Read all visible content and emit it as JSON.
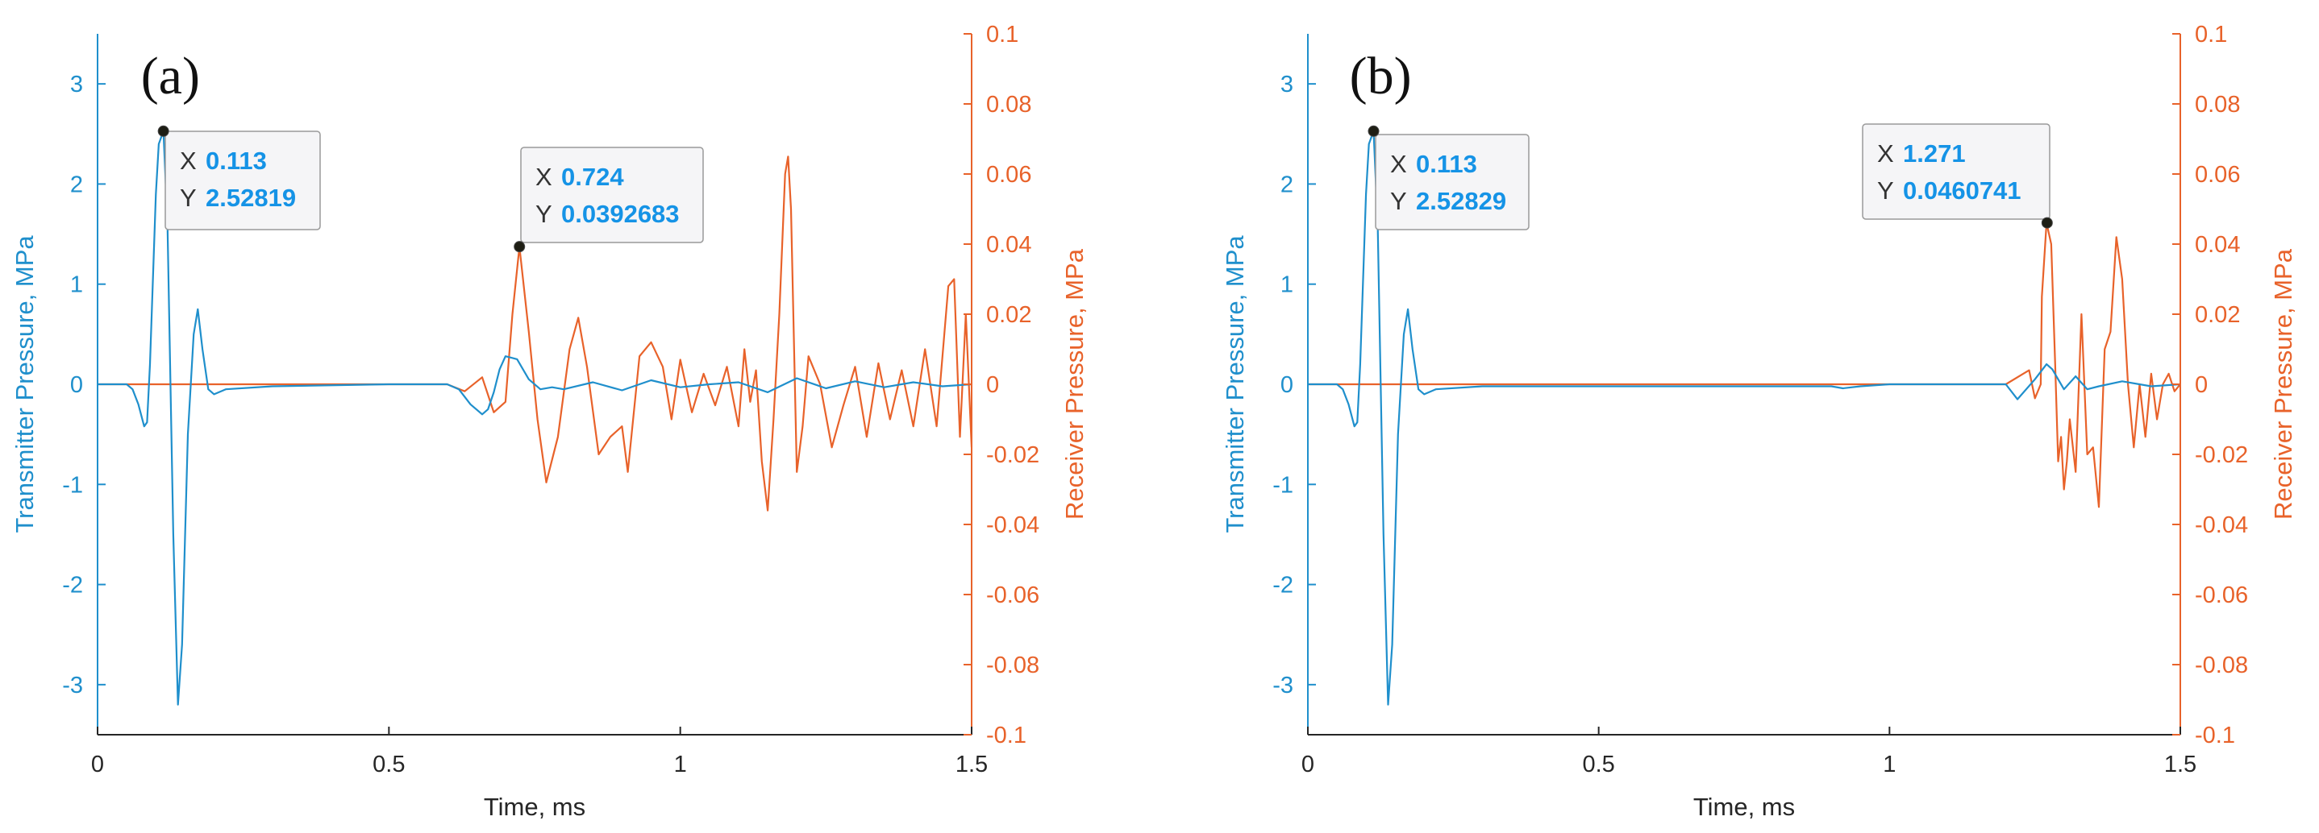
{
  "colors": {
    "transmitter": "#1F8FCC",
    "receiver": "#E8622A",
    "tip_value": "#1593E6",
    "axis_dark": "#262626"
  },
  "chart_data": [
    {
      "type": "line",
      "panel_label": "(a)",
      "xlabel": "Time, ms",
      "ylabel_left": "Transmitter Pressure, MPa",
      "ylabel_right": "Receiver Pressure, MPa",
      "xlim": [
        0,
        1.5
      ],
      "ylim_left": [
        -3.5,
        3.5
      ],
      "ylim_right": [
        -0.1,
        0.1
      ],
      "x_ticks": [
        "0",
        "0.5",
        "1",
        "1.5"
      ],
      "y_ticks_left": [
        "-3",
        "-2",
        "-1",
        "0",
        "1",
        "2",
        "3"
      ],
      "y_ticks_right": [
        "-0.1",
        "-0.08",
        "-0.06",
        "-0.04",
        "-0.02",
        "0",
        "0.02",
        "0.04",
        "0.06",
        "0.08",
        "0.1"
      ],
      "series": [
        {
          "axis": "left",
          "x": [
            0.0,
            0.05,
            0.06,
            0.07,
            0.08,
            0.085,
            0.09,
            0.1,
            0.105,
            0.113,
            0.12,
            0.13,
            0.138,
            0.145,
            0.155,
            0.165,
            0.172,
            0.18,
            0.19,
            0.2,
            0.22,
            0.3,
            0.5,
            0.6,
            0.62,
            0.64,
            0.66,
            0.67,
            0.68,
            0.69,
            0.7,
            0.72,
            0.74,
            0.76,
            0.78,
            0.8,
            0.85,
            0.9,
            0.95,
            1.0,
            1.05,
            1.1,
            1.15,
            1.2,
            1.25,
            1.3,
            1.35,
            1.4,
            1.45,
            1.5
          ],
          "y": [
            0.0,
            0.0,
            -0.05,
            -0.2,
            -0.42,
            -0.38,
            0.2,
            1.9,
            2.4,
            2.52819,
            1.6,
            -1.5,
            -3.2,
            -2.6,
            -0.5,
            0.5,
            0.75,
            0.35,
            -0.05,
            -0.1,
            -0.05,
            -0.02,
            0.0,
            0.0,
            -0.05,
            -0.2,
            -0.3,
            -0.25,
            -0.08,
            0.15,
            0.28,
            0.25,
            0.05,
            -0.05,
            -0.03,
            -0.05,
            0.02,
            -0.06,
            0.04,
            -0.03,
            0.0,
            0.02,
            -0.08,
            0.06,
            -0.04,
            0.03,
            -0.03,
            0.02,
            -0.02,
            0.0
          ]
        },
        {
          "axis": "right",
          "x": [
            0.0,
            0.6,
            0.63,
            0.66,
            0.68,
            0.7,
            0.712,
            0.724,
            0.74,
            0.755,
            0.77,
            0.79,
            0.81,
            0.825,
            0.84,
            0.86,
            0.88,
            0.9,
            0.91,
            0.93,
            0.95,
            0.97,
            0.985,
            1.0,
            1.02,
            1.04,
            1.06,
            1.08,
            1.1,
            1.11,
            1.12,
            1.13,
            1.14,
            1.15,
            1.16,
            1.17,
            1.18,
            1.185,
            1.19,
            1.2,
            1.21,
            1.22,
            1.24,
            1.26,
            1.28,
            1.3,
            1.32,
            1.34,
            1.36,
            1.38,
            1.4,
            1.42,
            1.44,
            1.46,
            1.47,
            1.48,
            1.49,
            1.5
          ],
          "y": [
            0.0,
            0.0,
            -0.002,
            0.002,
            -0.008,
            -0.005,
            0.02,
            0.0392683,
            0.015,
            -0.01,
            -0.028,
            -0.015,
            0.01,
            0.019,
            0.005,
            -0.02,
            -0.015,
            -0.012,
            -0.025,
            0.008,
            0.012,
            0.005,
            -0.01,
            0.007,
            -0.008,
            0.003,
            -0.006,
            0.005,
            -0.012,
            0.01,
            -0.005,
            0.004,
            -0.022,
            -0.036,
            -0.01,
            0.02,
            0.06,
            0.065,
            0.05,
            -0.025,
            -0.012,
            0.008,
            0.0,
            -0.018,
            -0.006,
            0.005,
            -0.015,
            0.006,
            -0.01,
            0.004,
            -0.012,
            0.01,
            -0.012,
            0.028,
            0.03,
            -0.015,
            0.02,
            -0.018
          ]
        }
      ],
      "annotations": [
        {
          "axis": "left",
          "x": 0.113,
          "y": 2.52819,
          "x_text": "0.113",
          "y_text": "2.52819"
        },
        {
          "axis": "right",
          "x": 0.724,
          "y": 0.0392683,
          "x_text": "0.724",
          "y_text": "0.0392683"
        }
      ]
    },
    {
      "type": "line",
      "panel_label": "(b)",
      "xlabel": "Time, ms",
      "ylabel_left": "Transmitter Pressure, MPa",
      "ylabel_right": "Receiver Pressure, MPa",
      "xlim": [
        0,
        1.5
      ],
      "ylim_left": [
        -3.5,
        3.5
      ],
      "ylim_right": [
        -0.1,
        0.1
      ],
      "x_ticks": [
        "0",
        "0.5",
        "1",
        "1.5"
      ],
      "y_ticks_left": [
        "-3",
        "-2",
        "-1",
        "0",
        "1",
        "2",
        "3"
      ],
      "y_ticks_right": [
        "-0.1",
        "-0.08",
        "-0.06",
        "-0.04",
        "-0.02",
        "0",
        "0.02",
        "0.04",
        "0.06",
        "0.08",
        "0.1"
      ],
      "series": [
        {
          "axis": "left",
          "x": [
            0.0,
            0.05,
            0.06,
            0.07,
            0.08,
            0.085,
            0.09,
            0.1,
            0.105,
            0.113,
            0.12,
            0.13,
            0.138,
            0.145,
            0.155,
            0.165,
            0.172,
            0.18,
            0.19,
            0.2,
            0.22,
            0.3,
            0.9,
            0.92,
            0.95,
            1.0,
            1.2,
            1.22,
            1.25,
            1.27,
            1.28,
            1.3,
            1.32,
            1.34,
            1.36,
            1.4,
            1.45,
            1.5
          ],
          "y": [
            0.0,
            0.0,
            -0.05,
            -0.2,
            -0.42,
            -0.38,
            0.2,
            1.9,
            2.4,
            2.52829,
            1.6,
            -1.5,
            -3.2,
            -2.6,
            -0.5,
            0.5,
            0.75,
            0.35,
            -0.05,
            -0.1,
            -0.05,
            -0.02,
            -0.02,
            -0.04,
            -0.02,
            0.0,
            0.0,
            -0.15,
            0.05,
            0.2,
            0.15,
            -0.05,
            0.08,
            -0.05,
            -0.02,
            0.03,
            -0.02,
            0.0
          ]
        },
        {
          "axis": "right",
          "x": [
            0.0,
            1.2,
            1.23,
            1.24,
            1.25,
            1.26,
            1.262,
            1.27,
            1.278,
            1.285,
            1.29,
            1.295,
            1.3,
            1.305,
            1.31,
            1.32,
            1.33,
            1.34,
            1.35,
            1.36,
            1.37,
            1.38,
            1.39,
            1.4,
            1.41,
            1.42,
            1.43,
            1.44,
            1.45,
            1.46,
            1.47,
            1.48,
            1.49,
            1.5
          ],
          "y": [
            0.0,
            0.0,
            0.003,
            0.004,
            -0.004,
            0.0,
            0.025,
            0.0460741,
            0.04,
            0.005,
            -0.022,
            -0.015,
            -0.03,
            -0.022,
            -0.01,
            -0.025,
            0.02,
            -0.02,
            -0.018,
            -0.035,
            0.01,
            0.015,
            0.042,
            0.03,
            0.0,
            -0.018,
            0.0,
            -0.015,
            0.003,
            -0.01,
            0.0,
            0.003,
            -0.002,
            0.0
          ]
        }
      ],
      "annotations": [
        {
          "axis": "left",
          "x": 0.113,
          "y": 2.52829,
          "x_text": "0.113",
          "y_text": "2.52829"
        },
        {
          "axis": "right",
          "x": 1.271,
          "y": 0.0460741,
          "x_text": "1.271",
          "y_text": "0.0460741"
        }
      ]
    }
  ]
}
